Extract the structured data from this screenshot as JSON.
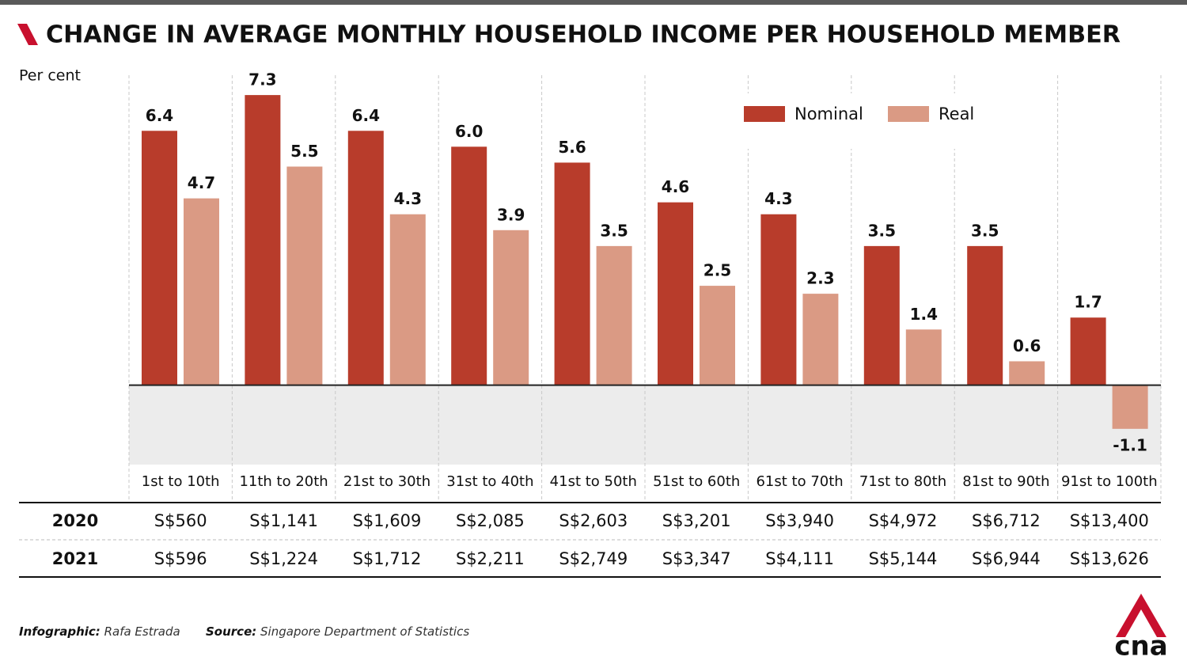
{
  "chart_data": {
    "type": "bar",
    "title": "CHANGE IN AVERAGE MONTHLY HOUSEHOLD INCOME PER HOUSEHOLD MEMBER",
    "y_label": "Per cent",
    "categories": [
      "1st to 10th",
      "11th to 20th",
      "21st to 30th",
      "31st to 40th",
      "41st to 50th",
      "51st to 60th",
      "61st to 70th",
      "71st to 80th",
      "81st to 90th",
      "91st to 100th"
    ],
    "series": [
      {
        "name": "Nominal",
        "color": "#b83c2b",
        "values": [
          6.4,
          7.3,
          6.4,
          6.0,
          5.6,
          4.6,
          4.3,
          3.5,
          3.5,
          1.7
        ],
        "value_labels": [
          "6.4",
          "7.3",
          "6.4",
          "6.0",
          "5.6",
          "4.6",
          "4.3",
          "3.5",
          "3.5",
          "1.7"
        ]
      },
      {
        "name": "Real",
        "color": "#da9a84",
        "values": [
          4.7,
          5.5,
          4.3,
          3.9,
          3.5,
          2.5,
          2.3,
          1.4,
          0.6,
          -1.1
        ],
        "value_labels": [
          "4.7",
          "5.5",
          "4.3",
          "3.9",
          "3.5",
          "2.5",
          "2.3",
          "1.4",
          "0.6",
          "-1.1"
        ]
      }
    ],
    "ylim": [
      -2,
      7.8
    ]
  },
  "table": {
    "rows": [
      [
        "2020",
        "S$560",
        "S$1,141",
        "S$1,609",
        "S$2,085",
        "S$2,603",
        "S$3,201",
        "S$3,940",
        "S$4,972",
        "S$6,712",
        "S$13,400"
      ],
      [
        "2021",
        "S$596",
        "S$1,224",
        "S$1,712",
        "S$2,211",
        "S$2,749",
        "S$3,347",
        "S$4,111",
        "S$5,144",
        "S$6,944",
        "S$13,626"
      ]
    ]
  },
  "footer": {
    "credit_label": "Infographic:",
    "credit": "Rafa Estrada",
    "source_label": "Source:",
    "source": "Singapore Department of Statistics"
  },
  "logo": "cna"
}
